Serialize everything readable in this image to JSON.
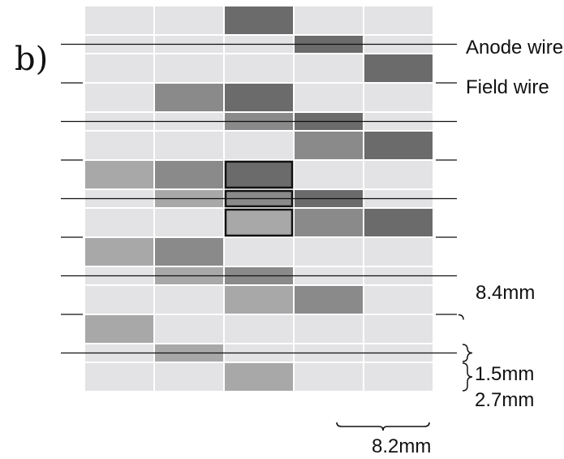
{
  "panel_label": "b)",
  "labels": {
    "anode_wire": "Anode wire",
    "field_wire": "Field wire",
    "cell_height": "8.4mm",
    "thin_row_height": "1.5mm",
    "thick_row_height": "2.7mm",
    "cell_width": "8.2mm"
  },
  "colors": {
    "background": "#ffffff",
    "empty_cell": "#e3e3e5",
    "grid_gap": "#ffffff",
    "wire": "#111111",
    "highlight_border": "#111111"
  },
  "grid": {
    "columns": 5,
    "row_kinds": [
      "thick",
      "thin",
      "thick",
      "thick",
      "thin",
      "thick",
      "thick",
      "thin",
      "thick",
      "thick",
      "thin",
      "thick",
      "thick",
      "thin",
      "thick"
    ],
    "hit_shades": {
      "1": "#a8a8a8",
      "2": "#8a8a8a",
      "3": "#6b6b6b"
    },
    "levels": [
      [
        0,
        0,
        3,
        0,
        0
      ],
      [
        0,
        0,
        0,
        3,
        0
      ],
      [
        0,
        0,
        0,
        0,
        3
      ],
      [
        0,
        2,
        3,
        0,
        0
      ],
      [
        0,
        0,
        2,
        3,
        0
      ],
      [
        0,
        0,
        0,
        2,
        3
      ],
      [
        1,
        2,
        3,
        0,
        0
      ],
      [
        0,
        1,
        2,
        3,
        0
      ],
      [
        0,
        0,
        1,
        2,
        3
      ],
      [
        1,
        2,
        0,
        0,
        0
      ],
      [
        0,
        1,
        2,
        0,
        0
      ],
      [
        0,
        0,
        1,
        2,
        0
      ],
      [
        1,
        0,
        0,
        0,
        0
      ],
      [
        0,
        1,
        0,
        0,
        0
      ],
      [
        0,
        0,
        1,
        0,
        0
      ]
    ],
    "highlighted_cells": [
      [
        6,
        2
      ],
      [
        7,
        2
      ],
      [
        8,
        2
      ]
    ]
  }
}
